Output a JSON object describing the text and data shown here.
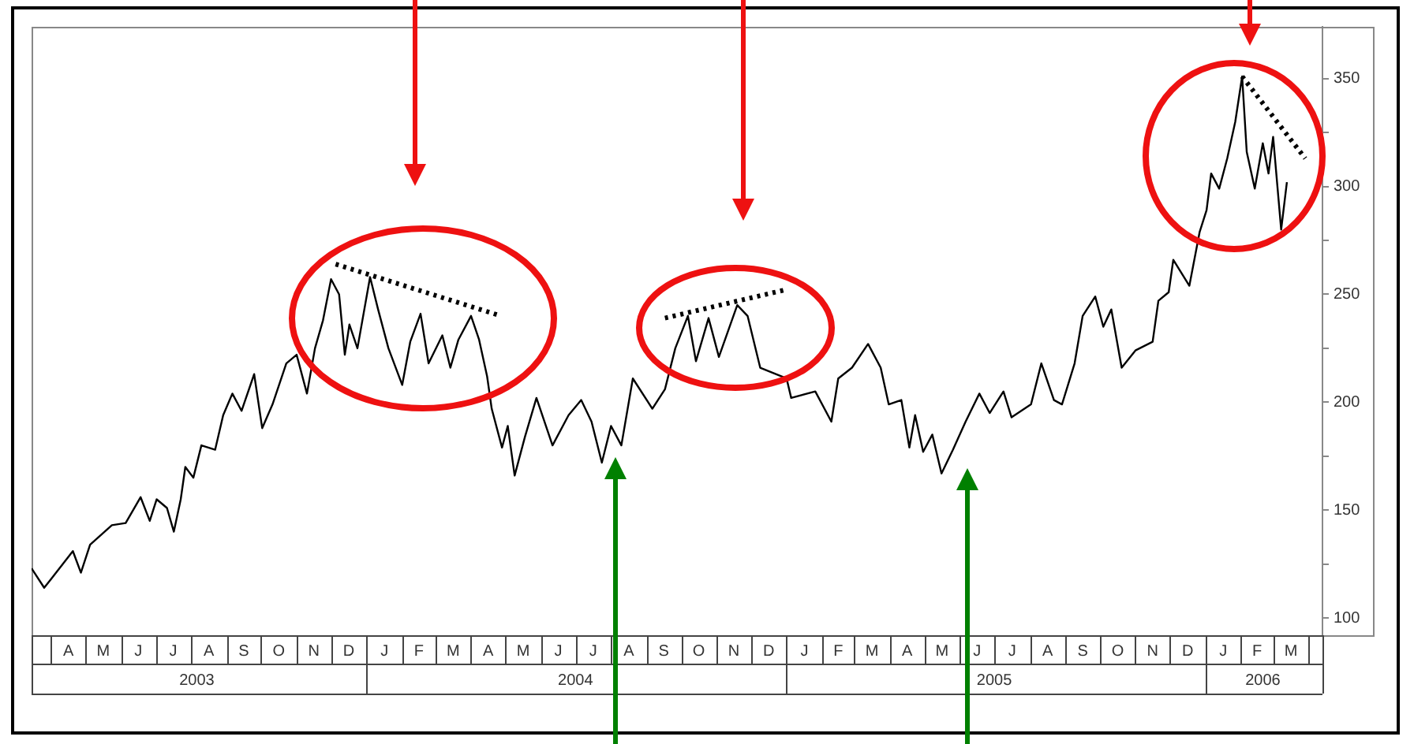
{
  "chart_data": {
    "type": "line",
    "line_style": "solid",
    "marker": "none",
    "legend": false,
    "grid": false,
    "xlim": [
      "2003-03-15",
      "2006-04-13"
    ],
    "ylim": [
      92,
      374
    ],
    "yticks": [
      100,
      {
        "value": 125,
        "label": null
      },
      150,
      {
        "value": 175,
        "label": null
      },
      200,
      {
        "value": 225,
        "label": null
      },
      250,
      {
        "value": 275,
        "label": null
      },
      300,
      {
        "value": 325,
        "label": null
      },
      350
    ],
    "annotations": [
      "A",
      "M",
      "J",
      "J",
      "A",
      "S",
      "O",
      "N",
      "D",
      "J",
      "F",
      "M",
      "A",
      "M",
      "J",
      "J",
      "A",
      "S",
      "O",
      "N",
      "D",
      "J",
      "F",
      "M",
      "A",
      "M",
      "J",
      "J",
      "A",
      "S",
      "O",
      "N",
      "D",
      "J",
      "F",
      "M"
    ],
    "xticks": [
      {
        "value": "2003-08-06",
        "label": "2003"
      },
      {
        "value": "2004-07-01",
        "label": "2004"
      },
      {
        "value": "2005-07-01",
        "label": "2005"
      },
      {
        "value": "2006-02-20",
        "label": "2006"
      }
    ],
    "series": [
      {
        "color": "#000000",
        "x": [
          "2003-03-15",
          "2003-03-26",
          "2003-04-01",
          "2003-04-20",
          "2003-04-27",
          "2003-05-05",
          "2003-05-24",
          "2003-06-05",
          "2003-06-18",
          "2003-06-26",
          "2003-07-02",
          "2003-07-11",
          "2003-07-17",
          "2003-07-23",
          "2003-07-27",
          "2003-08-03",
          "2003-08-10",
          "2003-08-22",
          "2003-08-29",
          "2003-09-06",
          "2003-09-14",
          "2003-09-25",
          "2003-10-02",
          "2003-10-11",
          "2003-10-23",
          "2003-11-01",
          "2003-11-10",
          "2003-11-17",
          "2003-11-24",
          "2003-12-01",
          "2003-12-08",
          "2003-12-13",
          "2003-12-17",
          "2003-12-24",
          "2004-01-04",
          "2004-01-11",
          "2004-01-20",
          "2004-02-01",
          "2004-02-08",
          "2004-02-17",
          "2004-02-24",
          "2004-03-07",
          "2004-03-14",
          "2004-03-21",
          "2004-04-01",
          "2004-04-08",
          "2004-04-15",
          "2004-04-19",
          "2004-04-28",
          "2004-05-03",
          "2004-05-09",
          "2004-05-18",
          "2004-05-28",
          "2004-06-11",
          "2004-06-25",
          "2004-07-06",
          "2004-07-15",
          "2004-07-24",
          "2004-08-01",
          "2004-08-10",
          "2004-08-20",
          "2004-09-06",
          "2004-09-17",
          "2004-09-26",
          "2004-10-07",
          "2004-10-14",
          "2004-10-25",
          "2004-11-03",
          "2004-11-19",
          "2004-11-28",
          "2004-12-09",
          "2005-01-01",
          "2005-01-05",
          "2005-01-26",
          "2005-02-09",
          "2005-02-15",
          "2005-02-27",
          "2005-03-13",
          "2005-03-24",
          "2005-03-31",
          "2005-04-11",
          "2005-04-18",
          "2005-04-23",
          "2005-04-30",
          "2005-05-08",
          "2005-05-16",
          "2005-05-26",
          "2005-06-06",
          "2005-06-18",
          "2005-06-27",
          "2005-07-09",
          "2005-07-16",
          "2005-08-02",
          "2005-08-11",
          "2005-08-22",
          "2005-08-29",
          "2005-09-09",
          "2005-09-16",
          "2005-09-27",
          "2005-10-04",
          "2005-10-11",
          "2005-10-20",
          "2005-11-01",
          "2005-11-16",
          "2005-11-21",
          "2005-11-30",
          "2005-12-04",
          "2005-12-11",
          "2005-12-18",
          "2005-12-27",
          "2006-01-02",
          "2006-01-06",
          "2006-01-13",
          "2006-01-20",
          "2006-01-27",
          "2006-02-02",
          "2006-02-06",
          "2006-02-13",
          "2006-02-20",
          "2006-02-25",
          "2006-03-01",
          "2006-03-08",
          "2006-03-13"
        ],
        "values": [
          123,
          114,
          118,
          131,
          121,
          134,
          143,
          144,
          156,
          145,
          155,
          151,
          140,
          155,
          170,
          165,
          180,
          178,
          194,
          204,
          196,
          213,
          188,
          199,
          218,
          222,
          204,
          225,
          238,
          257,
          250,
          222,
          236,
          225,
          258,
          243,
          225,
          208,
          228,
          241,
          218,
          231,
          216,
          229,
          240,
          229,
          212,
          197,
          179,
          189,
          166,
          184,
          202,
          180,
          194,
          201,
          191,
          172,
          189,
          180,
          211,
          197,
          206,
          225,
          240,
          219,
          239,
          221,
          245,
          240,
          216,
          211,
          202,
          205,
          191,
          211,
          216,
          227,
          216,
          199,
          201,
          179,
          194,
          177,
          185,
          167,
          178,
          191,
          204,
          195,
          205,
          193,
          199,
          218,
          201,
          199,
          218,
          240,
          249,
          235,
          243,
          216,
          224,
          228,
          247,
          251,
          266,
          260,
          254,
          279,
          289,
          306,
          299,
          313,
          330,
          351,
          316,
          299,
          320,
          306,
          323,
          280,
          302
        ]
      },
      {
        "type": "line",
        "line_style": "dotted",
        "color": "#000000",
        "x": [
          "2003-12-05",
          "2004-04-27"
        ],
        "values": [
          264,
          240
        ]
      },
      {
        "type": "line",
        "line_style": "dotted",
        "color": "#000000",
        "x": [
          "2004-09-17",
          "2004-12-30"
        ],
        "values": [
          239,
          252
        ]
      },
      {
        "type": "line",
        "line_style": "dotted",
        "color": "#000000",
        "x": [
          "2006-02-02",
          "2006-03-29"
        ],
        "values": [
          351,
          313
        ]
      }
    ]
  }
}
